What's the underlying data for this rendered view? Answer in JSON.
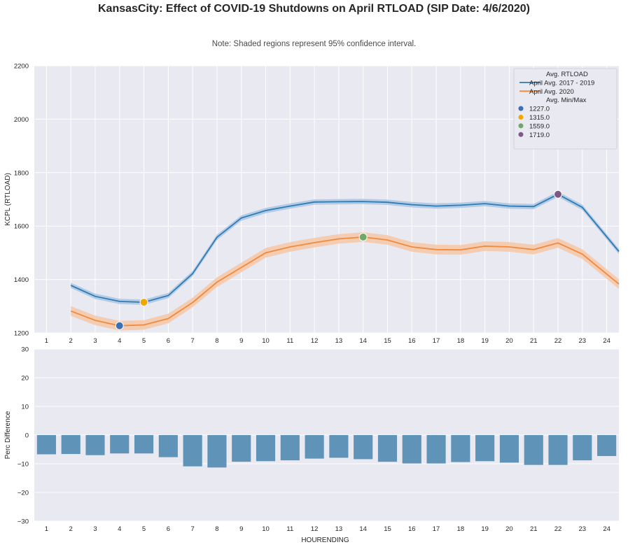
{
  "title": "KansasCity: Effect of COVID-19 Shutdowns on April RTLOAD (SIP Date: 4/6/2020)",
  "subtitle": "Note: Shaded regions represent 95% confidence interval.",
  "colors": {
    "baseline": "#2f7bb4",
    "baseline_band": "#a9c6e3",
    "covid": "#f08a3e",
    "covid_band": "#f6c7a6",
    "bars": "#5f93b8",
    "plot_bg": "#e9e9f1",
    "grid": "#ffffff"
  },
  "chart_data": [
    {
      "type": "line",
      "ylabel": "KCPL (RTLOAD)",
      "xlabel": "",
      "xlim": [
        0.5,
        24.5
      ],
      "ylim": [
        1200,
        2200
      ],
      "yticks": [
        1200,
        1400,
        1600,
        1800,
        2000,
        2200
      ],
      "x_ticks": [
        1,
        2,
        3,
        4,
        5,
        6,
        7,
        8,
        9,
        10,
        11,
        12,
        13,
        14,
        15,
        16,
        17,
        18,
        19,
        20,
        21,
        22,
        23,
        24
      ],
      "legend": {
        "position": "top-right",
        "header_1": "Avg. RTLOAD",
        "header_2": "Avg. Min/Max",
        "min_max_labels": [
          "1227.0",
          "1315.0",
          "1559.0",
          "1719.0"
        ]
      },
      "series": [
        {
          "name": "April Avg. 2017 - 2019",
          "x": [
            2,
            3,
            4,
            5,
            6,
            7,
            8,
            9,
            10,
            11,
            12,
            13,
            14,
            15,
            16,
            17,
            18,
            19,
            20,
            21,
            22,
            23,
            24.5
          ],
          "values": [
            1378,
            1337,
            1318,
            1315,
            1340,
            1422,
            1558,
            1630,
            1658,
            1675,
            1690,
            1691,
            1692,
            1689,
            1680,
            1675,
            1678,
            1684,
            1675,
            1673,
            1719,
            1670,
            1505
          ],
          "ci": 10
        },
        {
          "name": "April Avg. 2020",
          "x": [
            2,
            3,
            4,
            5,
            6,
            7,
            8,
            9,
            10,
            11,
            12,
            13,
            14,
            15,
            16,
            17,
            18,
            19,
            20,
            21,
            22,
            23,
            24.5
          ],
          "values": [
            1282,
            1247,
            1227,
            1230,
            1254,
            1314,
            1390,
            1445,
            1500,
            1522,
            1538,
            1552,
            1559,
            1548,
            1522,
            1512,
            1511,
            1525,
            1522,
            1512,
            1537,
            1495,
            1383
          ],
          "ci": 18
        }
      ],
      "markers": [
        {
          "label": "1227.0",
          "x": 4,
          "y": 1227,
          "color": "#3b6fb6"
        },
        {
          "label": "1315.0",
          "x": 5,
          "y": 1315,
          "color": "#f0a800"
        },
        {
          "label": "1559.0",
          "x": 14,
          "y": 1559,
          "color": "#6fa86a"
        },
        {
          "label": "1719.0",
          "x": 22,
          "y": 1719,
          "color": "#7e5887"
        }
      ]
    },
    {
      "type": "bar",
      "xlabel": "HOURENDING",
      "ylabel": "Perc Difference",
      "ylim": [
        -30,
        30
      ],
      "yticks": [
        -30,
        -20,
        -10,
        0,
        10,
        20,
        30
      ],
      "ytick_labels": [
        "−30",
        "−20",
        "−10",
        "0",
        "10",
        "20",
        "30"
      ],
      "categories": [
        "1",
        "2",
        "3",
        "4",
        "5",
        "6",
        "7",
        "8",
        "9",
        "10",
        "11",
        "12",
        "13",
        "14",
        "15",
        "16",
        "17",
        "18",
        "19",
        "20",
        "21",
        "22",
        "23",
        "24"
      ],
      "values": [
        -6.7,
        -6.6,
        -7.0,
        -6.4,
        -6.4,
        -7.7,
        -10.9,
        -11.3,
        -9.3,
        -9.1,
        -8.8,
        -8.2,
        -7.9,
        -8.4,
        -9.3,
        -9.9,
        -9.9,
        -9.4,
        -9.1,
        -9.6,
        -10.4,
        -10.4,
        -8.8,
        -7.3
      ]
    }
  ]
}
